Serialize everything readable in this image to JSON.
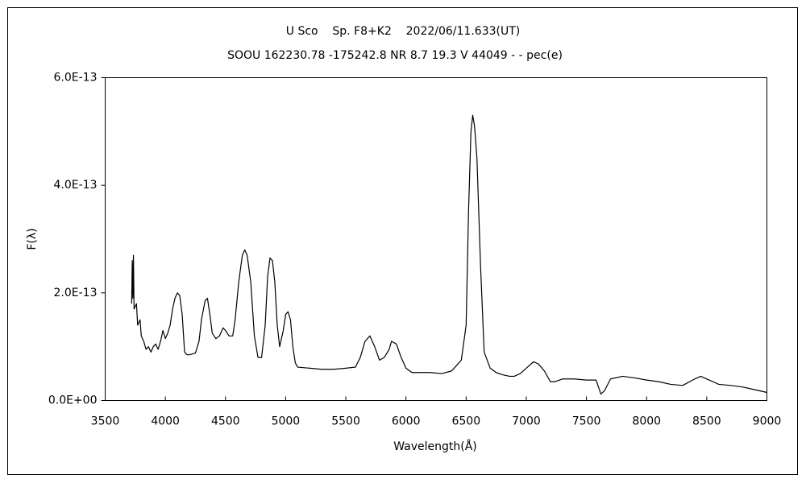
{
  "chart_data": {
    "type": "line",
    "title": "U Sco    Sp. F8+K2    2022/06/11.633(UT)",
    "subtitle": "SOOU 162230.78 -175242.8 NR 8.7 19.3 V 44049 - - pec(e)",
    "x_label": "Wavelength(Å)",
    "y_label": "F(λ)",
    "color": "#000000",
    "grid": false,
    "xlim": [
      3500,
      9000
    ],
    "xticks": [
      3500,
      4000,
      4500,
      5000,
      5500,
      6000,
      6500,
      7000,
      7500,
      8000,
      8500,
      9000
    ],
    "ylim": [
      0,
      6e-13
    ],
    "yticks": [
      {
        "value": 0,
        "label": "0.0E+00"
      },
      {
        "value": 2e-13,
        "label": "2.0E-13"
      },
      {
        "value": 4e-13,
        "label": "4.0E-13"
      },
      {
        "value": 6e-13,
        "label": "6.0E-13"
      }
    ],
    "x": [
      3720,
      3725,
      3730,
      3735,
      3740,
      3760,
      3770,
      3790,
      3800,
      3820,
      3840,
      3860,
      3880,
      3900,
      3920,
      3940,
      3960,
      3980,
      4000,
      4020,
      4040,
      4060,
      4080,
      4100,
      4120,
      4140,
      4160,
      4180,
      4200,
      4250,
      4280,
      4300,
      4330,
      4350,
      4370,
      4390,
      4420,
      4450,
      4480,
      4500,
      4530,
      4560,
      4580,
      4610,
      4640,
      4660,
      4680,
      4710,
      4740,
      4770,
      4800,
      4830,
      4850,
      4870,
      4890,
      4910,
      4930,
      4950,
      4980,
      5000,
      5020,
      5040,
      5060,
      5080,
      5100,
      5200,
      5300,
      5400,
      5500,
      5580,
      5620,
      5660,
      5700,
      5740,
      5780,
      5820,
      5860,
      5880,
      5920,
      5960,
      6000,
      6050,
      6100,
      6200,
      6300,
      6380,
      6420,
      6460,
      6500,
      6520,
      6540,
      6555,
      6570,
      6590,
      6620,
      6650,
      6700,
      6750,
      6800,
      6860,
      6900,
      6950,
      7000,
      7060,
      7100,
      7150,
      7200,
      7240,
      7300,
      7400,
      7500,
      7580,
      7620,
      7650,
      7700,
      7800,
      7900,
      8000,
      8100,
      8200,
      8300,
      8400,
      8450,
      8500,
      8600,
      8700,
      8800,
      8900,
      9000
    ],
    "values": [
      1.8e-13,
      2.6e-13,
      1.9e-13,
      2.7e-13,
      1.7e-13,
      1.8e-13,
      1.4e-13,
      1.5e-13,
      1.2e-13,
      1.1e-13,
      9.5e-14,
      1e-13,
      9e-14,
      1e-13,
      1.05e-13,
      9.5e-14,
      1.1e-13,
      1.3e-13,
      1.15e-13,
      1.25e-13,
      1.4e-13,
      1.7e-13,
      1.9e-13,
      2e-13,
      1.95e-13,
      1.6e-13,
      9e-14,
      8.5e-14,
      8.5e-14,
      8.8e-14,
      1.1e-13,
      1.5e-13,
      1.85e-13,
      1.9e-13,
      1.6e-13,
      1.25e-13,
      1.15e-13,
      1.2e-13,
      1.35e-13,
      1.3e-13,
      1.2e-13,
      1.2e-13,
      1.5e-13,
      2.2e-13,
      2.7e-13,
      2.8e-13,
      2.7e-13,
      2.2e-13,
      1.2e-13,
      8e-14,
      8e-14,
      1.4e-13,
      2.3e-13,
      2.65e-13,
      2.6e-13,
      2.2e-13,
      1.4e-13,
      1e-13,
      1.3e-13,
      1.6e-13,
      1.65e-13,
      1.5e-13,
      1e-13,
      7e-14,
      6.2e-14,
      6e-14,
      5.8e-14,
      5.8e-14,
      6e-14,
      6.2e-14,
      8e-14,
      1.1e-13,
      1.2e-13,
      1e-13,
      7.5e-14,
      8e-14,
      9.5e-14,
      1.1e-13,
      1.05e-13,
      8e-14,
      6e-14,
      5.2e-14,
      5.2e-14,
      5.2e-14,
      5e-14,
      5.5e-14,
      6.5e-14,
      7.5e-14,
      1.4e-13,
      3.5e-13,
      5e-13,
      5.3e-13,
      5.1e-13,
      4.5e-13,
      2.5e-13,
      9e-14,
      6e-14,
      5.2e-14,
      4.8e-14,
      4.5e-14,
      4.5e-14,
      5e-14,
      6e-14,
      7.2e-14,
      6.8e-14,
      5.5e-14,
      3.5e-14,
      3.5e-14,
      4e-14,
      4e-14,
      3.8e-14,
      3.8e-14,
      1.2e-14,
      1.8e-14,
      4e-14,
      4.5e-14,
      4.2e-14,
      3.8e-14,
      3.5e-14,
      3e-14,
      2.8e-14,
      4e-14,
      4.5e-14,
      4e-14,
      3e-14,
      2.8e-14,
      2.5e-14,
      2e-14,
      1.5e-14
    ]
  }
}
